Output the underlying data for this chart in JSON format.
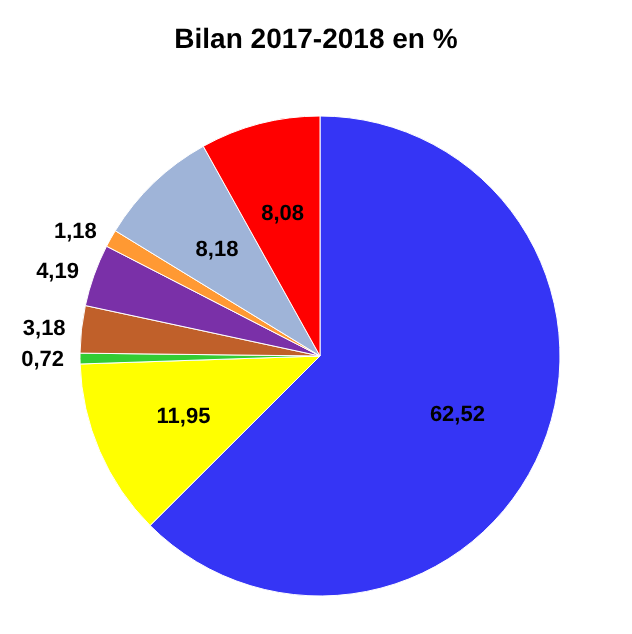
{
  "chart_data": {
    "type": "pie",
    "title": "Bilan 2017-2018  en %",
    "categories": [
      null,
      null,
      null,
      null,
      null,
      null,
      null,
      null
    ],
    "values": [
      62.52,
      11.95,
      0.72,
      3.18,
      4.19,
      1.18,
      8.18,
      8.08
    ],
    "value_labels": [
      "62,52",
      "11,95",
      "0,72",
      "3,18",
      "4,19",
      "1,18",
      "8,18",
      "8,08"
    ],
    "colors": [
      "#3535f5",
      "#ffff00",
      "#33cc33",
      "#c0602a",
      "#7a30a8",
      "#ff9933",
      "#9fb4d8",
      "#ff0000"
    ]
  }
}
